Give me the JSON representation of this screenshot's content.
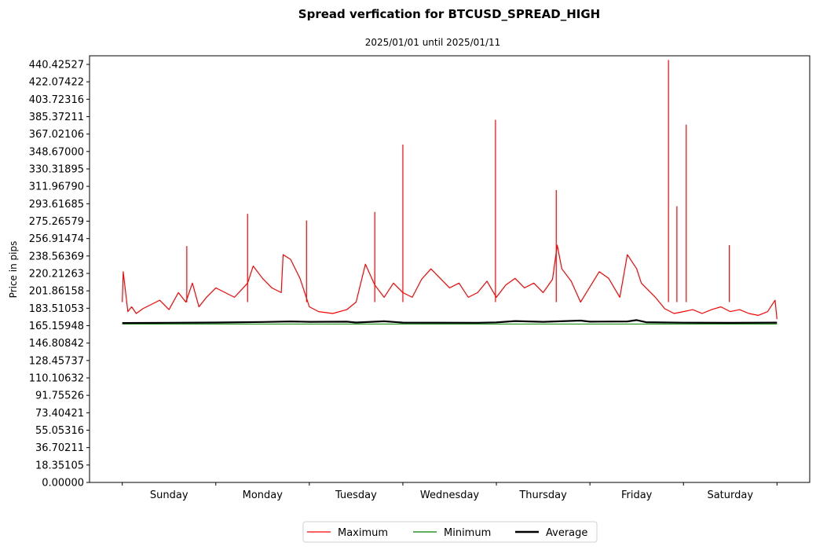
{
  "chart_data": {
    "type": "line",
    "title": "Spread verfication for BTCUSD_SPREAD_HIGH",
    "subtitle": "2025/01/01 until 2025/01/11",
    "ylabel": "Price in pips",
    "xlabel": "",
    "ylim": [
      0,
      449.5
    ],
    "xlim": [
      -0.35,
      7.35
    ],
    "grid": false,
    "legend_position": "bottom-center",
    "y_ticks": [
      "0.00000",
      "18.35105",
      "36.70211",
      "55.05316",
      "73.40421",
      "91.75526",
      "110.10632",
      "128.45737",
      "146.80842",
      "165.15948",
      "183.51053",
      "201.86158",
      "220.21263",
      "238.56369",
      "256.91474",
      "275.26579",
      "293.61685",
      "311.96790",
      "330.31895",
      "348.67000",
      "367.02106",
      "385.37211",
      "403.72316",
      "422.07422",
      "440.42527"
    ],
    "categories": [
      "Sunday",
      "Monday",
      "Tuesday",
      "Wednesday",
      "Thursday",
      "Friday",
      "Saturday"
    ],
    "series": [
      {
        "name": "Maximum",
        "color": "#ff0000",
        "x": [
          0.0,
          0.01,
          0.03,
          0.06,
          0.1,
          0.15,
          0.22,
          0.3,
          0.4,
          0.5,
          0.6,
          0.68,
          0.75,
          0.82,
          0.9,
          1.0,
          1.1,
          1.2,
          1.34,
          1.4,
          1.5,
          1.6,
          1.7,
          1.72,
          1.8,
          1.9,
          2.0,
          2.1,
          2.25,
          2.4,
          2.5,
          2.6,
          2.7,
          2.8,
          2.9,
          3.0,
          3.1,
          3.2,
          3.3,
          3.4,
          3.5,
          3.6,
          3.7,
          3.8,
          3.9,
          4.0,
          4.1,
          4.2,
          4.3,
          4.4,
          4.5,
          4.6,
          4.65,
          4.7,
          4.8,
          4.9,
          5.0,
          5.1,
          5.2,
          5.32,
          5.4,
          5.5,
          5.55,
          5.6,
          5.7,
          5.8,
          5.9,
          6.0,
          6.1,
          6.2,
          6.3,
          6.4,
          6.5,
          6.6,
          6.7,
          6.8,
          6.9,
          6.98,
          7.0
        ],
        "values": [
          190,
          222,
          205,
          180,
          185,
          178,
          183,
          187,
          192,
          182,
          200,
          190,
          210,
          185,
          195,
          205,
          200,
          195,
          210,
          228,
          215,
          205,
          200,
          240,
          235,
          215,
          185,
          180,
          178,
          182,
          190,
          230,
          208,
          195,
          210,
          200,
          195,
          214,
          225,
          215,
          205,
          210,
          195,
          200,
          212,
          195,
          208,
          215,
          205,
          210,
          200,
          214,
          250,
          225,
          212,
          190,
          206,
          222,
          215,
          195,
          240,
          225,
          210,
          205,
          195,
          183,
          178,
          180,
          182,
          178,
          182,
          185,
          180,
          182,
          178,
          176,
          180,
          192,
          172
        ]
      },
      {
        "name": "Minimum",
        "color": "#008000",
        "x": [
          0.0,
          7.0
        ],
        "values": [
          166.9,
          166.9
        ]
      },
      {
        "name": "Average",
        "color": "#000000",
        "x": [
          0.0,
          0.5,
          1.0,
          1.5,
          1.8,
          2.0,
          2.4,
          2.5,
          2.8,
          3.0,
          3.8,
          4.0,
          4.2,
          4.5,
          4.9,
          5.0,
          5.4,
          5.5,
          5.6,
          6.0,
          6.5,
          7.0
        ],
        "values": [
          168.0,
          168.2,
          168.5,
          169.0,
          169.6,
          169.2,
          169.4,
          168.5,
          169.8,
          168.4,
          168.2,
          168.6,
          170.0,
          169.2,
          170.5,
          169.4,
          169.6,
          171.0,
          168.8,
          168.3,
          168.1,
          168.4
        ]
      }
    ],
    "spikes": [
      {
        "series": "Maximum",
        "x": 0.69,
        "value": 249
      },
      {
        "series": "Maximum",
        "x": 1.34,
        "value": 283
      },
      {
        "series": "Maximum",
        "x": 1.97,
        "value": 276
      },
      {
        "series": "Maximum",
        "x": 2.7,
        "value": 285
      },
      {
        "series": "Maximum",
        "x": 3.0,
        "value": 356
      },
      {
        "series": "Maximum",
        "x": 3.99,
        "value": 382
      },
      {
        "series": "Maximum",
        "x": 4.64,
        "value": 308
      },
      {
        "series": "Maximum",
        "x": 5.84,
        "value": 445
      },
      {
        "series": "Maximum",
        "x": 5.93,
        "value": 291
      },
      {
        "series": "Maximum",
        "x": 6.03,
        "value": 377
      },
      {
        "series": "Maximum",
        "x": 6.49,
        "value": 250
      }
    ]
  }
}
